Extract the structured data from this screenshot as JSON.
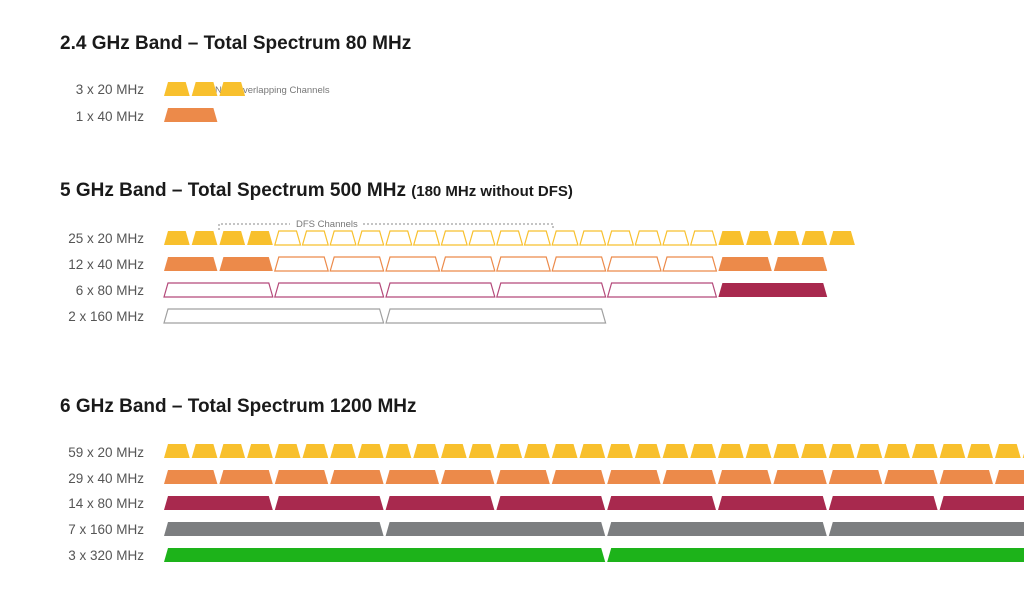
{
  "colors": {
    "ch20": "#F8C02D",
    "ch40": "#EC8A4A",
    "ch80": "#A8294E",
    "ch160": "#7C7E80",
    "ch320": "#1DB31A",
    "dfs20": "#F8C02D",
    "dfs40": "#EC8A4A",
    "dfs80": "#B4497A",
    "dfs160": "#A0A0A0"
  },
  "bands": [
    {
      "id": "band-24",
      "title": "2.4 GHz Band – Total Spectrum 80 MHz",
      "subtitle": "",
      "note": "Non-Overlapping Channels",
      "rows": [
        {
          "label": "3 x 20 MHz",
          "width_mhz": 20,
          "color_key": "ch20",
          "segments": [
            {
              "count": 3,
              "style": "filled"
            }
          ]
        },
        {
          "label": "1 x 40 MHz",
          "width_mhz": 40,
          "color_key": "ch40",
          "segments": [
            {
              "count": 1,
              "style": "filled"
            }
          ]
        }
      ]
    },
    {
      "id": "band-5",
      "title": "5 GHz Band – Total Spectrum 500 MHz",
      "subtitle": "(180 MHz without DFS)",
      "note": "DFS Channels",
      "rows": [
        {
          "label": "25 x 20 MHz",
          "width_mhz": 20,
          "color_key": "ch20",
          "dfs_color_key": "dfs20",
          "segments": [
            {
              "count": 4,
              "style": "filled"
            },
            {
              "count": 4,
              "style": "outline"
            },
            {
              "gap": true
            },
            {
              "count": 12,
              "style": "outline"
            },
            {
              "count": 5,
              "style": "filled"
            }
          ]
        },
        {
          "label": "12 x 40 MHz",
          "width_mhz": 40,
          "color_key": "ch40",
          "dfs_color_key": "dfs40",
          "segments": [
            {
              "count": 2,
              "style": "filled"
            },
            {
              "count": 2,
              "style": "outline"
            },
            {
              "gap": true
            },
            {
              "count": 6,
              "style": "outline"
            },
            {
              "count": 2,
              "style": "filled"
            }
          ]
        },
        {
          "label": "6 x 80 MHz",
          "width_mhz": 80,
          "color_key": "ch80",
          "dfs_color_key": "dfs80",
          "segments": [
            {
              "count": 2,
              "style": "outline"
            },
            {
              "gap": true
            },
            {
              "count": 3,
              "style": "outline"
            },
            {
              "count": 1,
              "style": "filled"
            }
          ]
        },
        {
          "label": "2 x 160 MHz",
          "width_mhz": 160,
          "color_key": "ch160",
          "dfs_color_key": "dfs160",
          "segments": [
            {
              "count": 1,
              "style": "outline"
            },
            {
              "gap": true
            },
            {
              "count": 1,
              "style": "outline"
            }
          ]
        }
      ]
    },
    {
      "id": "band-6",
      "title": "6 GHz Band – Total Spectrum 1200 MHz",
      "subtitle": "",
      "note": "",
      "rows": [
        {
          "label": "59 x 20 MHz",
          "width_mhz": 20,
          "color_key": "ch20",
          "segments": [
            {
              "count": 59,
              "style": "filled"
            }
          ]
        },
        {
          "label": "29 x 40 MHz",
          "width_mhz": 40,
          "color_key": "ch40",
          "segments": [
            {
              "count": 29,
              "style": "filled"
            }
          ]
        },
        {
          "label": "14 x 80 MHz",
          "width_mhz": 80,
          "color_key": "ch80",
          "segments": [
            {
              "count": 14,
              "style": "filled"
            }
          ]
        },
        {
          "label": "7 x 160 MHz",
          "width_mhz": 160,
          "color_key": "ch160",
          "segments": [
            {
              "count": 7,
              "style": "filled"
            }
          ]
        },
        {
          "label": "3 x 320 MHz",
          "width_mhz": 320,
          "color_key": "ch320",
          "segments": [
            {
              "count": 3,
              "style": "filled"
            }
          ]
        }
      ]
    }
  ]
}
